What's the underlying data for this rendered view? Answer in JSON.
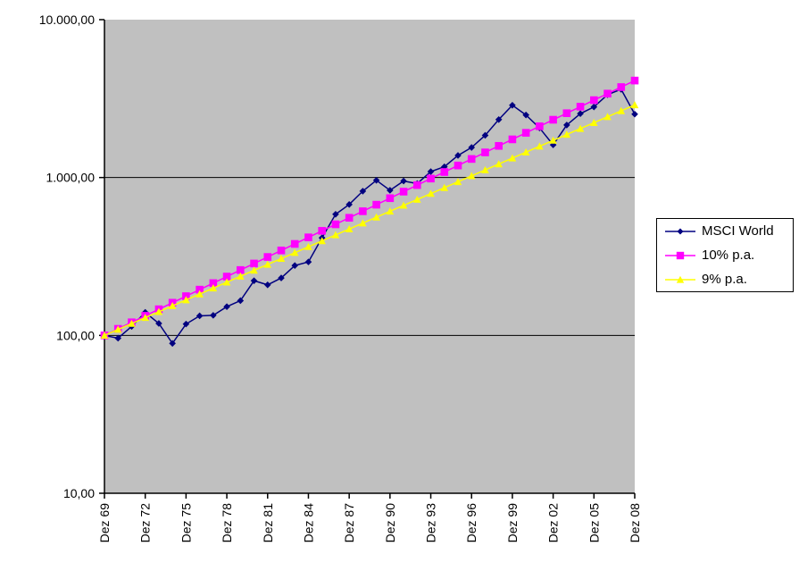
{
  "chart_data": {
    "type": "line",
    "title": "",
    "x_axis": {
      "categories": [
        "Dez 69",
        "Dez 70",
        "Dez 71",
        "Dez 72",
        "Dez 73",
        "Dez 74",
        "Dez 75",
        "Dez 76",
        "Dez 77",
        "Dez 78",
        "Dez 79",
        "Dez 80",
        "Dez 81",
        "Dez 82",
        "Dez 83",
        "Dez 84",
        "Dez 85",
        "Dez 86",
        "Dez 87",
        "Dez 88",
        "Dez 89",
        "Dez 90",
        "Dez 91",
        "Dez 92",
        "Dez 93",
        "Dez 94",
        "Dez 95",
        "Dez 96",
        "Dez 97",
        "Dez 98",
        "Dez 99",
        "Dez 00",
        "Dez 01",
        "Dez 02",
        "Dez 03",
        "Dez 04",
        "Dez 05",
        "Dez 06",
        "Dez 07",
        "Dez 08"
      ],
      "label_step": 3,
      "label_rotation_deg": -90
    },
    "y_axis": {
      "scale": "log",
      "min": 10,
      "max": 10000,
      "tick_values": [
        10000,
        1000,
        100,
        10
      ],
      "tick_labels": [
        "10.000,00",
        "1.000,00",
        "100,00",
        "10,00"
      ],
      "gridline_values": [
        1000,
        100
      ]
    },
    "series": [
      {
        "name": "MSCI World",
        "color": "#000080",
        "marker": "diamond",
        "values": [
          100,
          96,
          114,
          140,
          119,
          89,
          118,
          133,
          134,
          152,
          166,
          222,
          209,
          231,
          277,
          292,
          415,
          585,
          675,
          820,
          960,
          830,
          950,
          915,
          1090,
          1170,
          1380,
          1550,
          1850,
          2330,
          2870,
          2490,
          2060,
          1610,
          2150,
          2540,
          2800,
          3350,
          3620,
          2520
        ]
      },
      {
        "name": "10% p.a.",
        "color": "#FF00FF",
        "marker": "square",
        "values": [
          100,
          110,
          121,
          133.1,
          146.41,
          161.05,
          177.16,
          194.87,
          214.36,
          235.79,
          259.37,
          285.31,
          313.84,
          345.23,
          379.75,
          417.72,
          459.5,
          505.45,
          555.99,
          611.59,
          672.75,
          740.02,
          814.03,
          895.43,
          984.97,
          1083.47,
          1191.82,
          1311.0,
          1442.1,
          1586.31,
          1744.94,
          1919.43,
          2111.38,
          2322.52,
          2554.77,
          2810.24,
          3091.27,
          3400.39,
          3740.43,
          4114.48
        ]
      },
      {
        "name": "9% p.a.",
        "color": "#FFFF00",
        "marker": "triangle",
        "values": [
          100,
          109,
          118.81,
          129.5,
          141.16,
          153.86,
          167.71,
          182.8,
          199.26,
          217.19,
          236.74,
          258.04,
          281.27,
          306.58,
          334.17,
          364.25,
          397.03,
          432.76,
          471.71,
          514.17,
          560.44,
          610.88,
          665.86,
          725.79,
          791.11,
          862.31,
          939.92,
          1024.51,
          1116.71,
          1217.22,
          1326.77,
          1446.18,
          1576.33,
          1718.2,
          1872.84,
          2041.4,
          2225.12,
          2425.38,
          2643.67,
          2881.6
        ]
      }
    ],
    "legend_position": "right",
    "plot_bg": "#C0C0C0",
    "grid_color": "#000000",
    "axis_color": "#000000"
  }
}
